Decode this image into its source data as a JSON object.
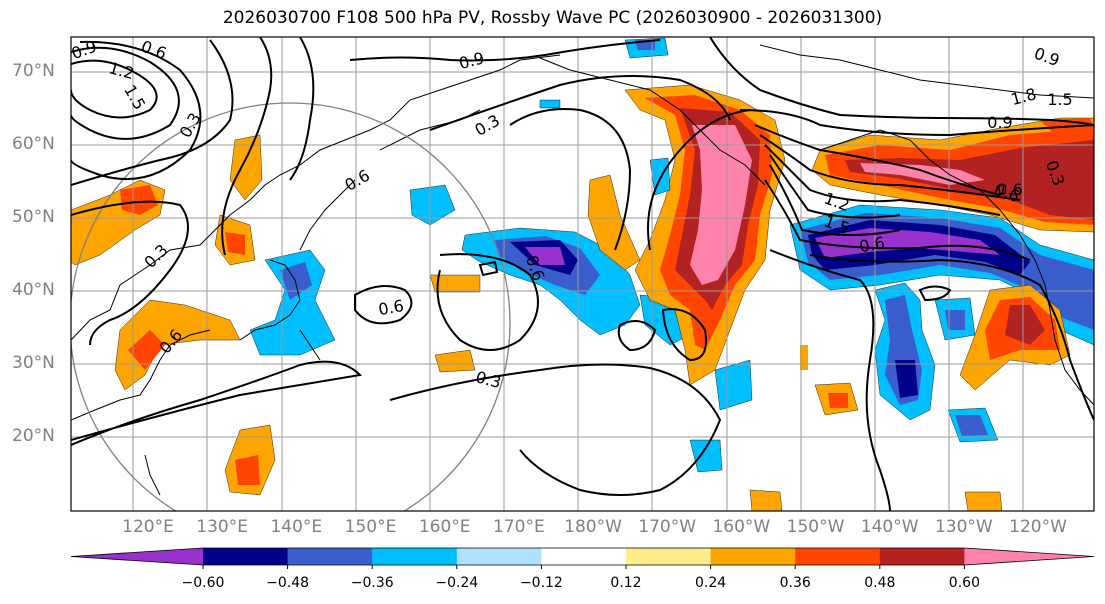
{
  "title": "2026030700 F108 500 hPa PV, Rossby Wave PC (2026030900 - 2026031300)",
  "lat_labels": [
    "70°N",
    "60°N",
    "50°N",
    "40°N",
    "30°N",
    "20°N"
  ],
  "lon_labels": [
    "120°E",
    "130°E",
    "140°E",
    "150°E",
    "160°E",
    "170°E",
    "180°W",
    "170°W",
    "160°W",
    "150°W",
    "140°W",
    "130°W",
    "120°W"
  ],
  "colorbar": {
    "ticks": [
      "−0.60",
      "−0.48",
      "−0.36",
      "−0.24",
      "−0.12",
      "0.12",
      "0.24",
      "0.36",
      "0.48",
      "0.60"
    ],
    "colors": [
      "#9932cc",
      "#00008b",
      "#3a5fcd",
      "#00bfff",
      "#b0e2ff",
      "#ffffff",
      "#ffec8b",
      "#ffa500",
      "#ff4500",
      "#b22222",
      "#ff82ab"
    ]
  },
  "contour_labels": [
    "0.9",
    "0.6",
    "1.2",
    "1.5",
    "0.3",
    "0.9",
    "0.3",
    "0.6",
    "0.3",
    "0.6",
    "0.6",
    "0.6",
    "0.3",
    "0.6",
    "0.6",
    "1.5",
    "1.2",
    "0.9",
    "0.6",
    "0.3",
    "0.9",
    "1.5",
    "1.8"
  ]
}
